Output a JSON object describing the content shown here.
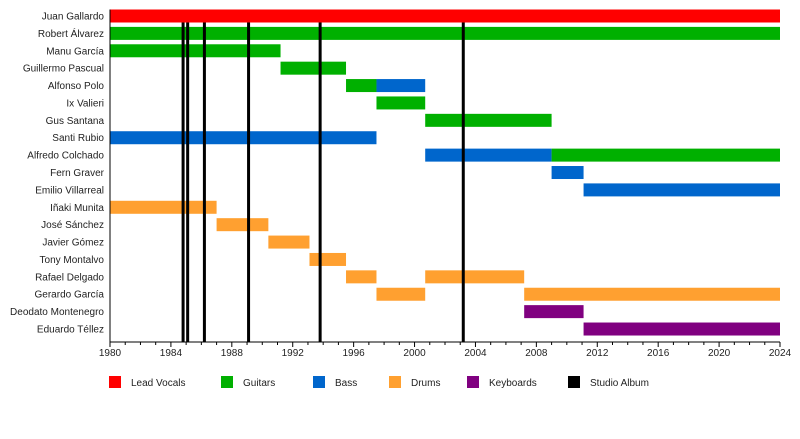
{
  "chart_data": {
    "type": "bar",
    "subtype": "timeline",
    "xlim": [
      1980,
      2024
    ],
    "xticks": [
      1980,
      1984,
      1988,
      1992,
      1996,
      2000,
      2004,
      2008,
      2012,
      2016,
      2020,
      2024
    ],
    "grid": false,
    "legend_placement": "bottom",
    "roles": [
      {
        "key": "vocals",
        "name": "Lead Vocals",
        "color": "#ff0000"
      },
      {
        "key": "guitars",
        "name": "Guitars",
        "color": "#00b000"
      },
      {
        "key": "bass",
        "name": "Bass",
        "color": "#0066cc"
      },
      {
        "key": "drums",
        "name": "Drums",
        "color": "#ffa030"
      },
      {
        "key": "keys",
        "name": "Keyboards",
        "color": "#800080"
      },
      {
        "key": "album",
        "name": "Studio Album",
        "color": "#000000"
      }
    ],
    "members": [
      {
        "name": "Juan Gallardo",
        "spans": [
          {
            "role": "vocals",
            "start": 1980,
            "end": 2024
          }
        ]
      },
      {
        "name": "Robert Álvarez",
        "spans": [
          {
            "role": "guitars",
            "start": 1980,
            "end": 2024
          }
        ]
      },
      {
        "name": "Manu García",
        "spans": [
          {
            "role": "guitars",
            "start": 1980,
            "end": 1991.2
          }
        ]
      },
      {
        "name": "Guillermo Pascual",
        "spans": [
          {
            "role": "guitars",
            "start": 1991.2,
            "end": 1995.5
          }
        ]
      },
      {
        "name": "Alfonso Polo",
        "spans": [
          {
            "role": "guitars",
            "start": 1995.5,
            "end": 1997.5
          },
          {
            "role": "bass",
            "start": 1997.5,
            "end": 2000.7
          }
        ]
      },
      {
        "name": "Ix Valieri",
        "spans": [
          {
            "role": "guitars",
            "start": 1997.5,
            "end": 2000.7
          }
        ]
      },
      {
        "name": "Gus Santana",
        "spans": [
          {
            "role": "guitars",
            "start": 2000.7,
            "end": 2009
          }
        ]
      },
      {
        "name": "Santi Rubio",
        "spans": [
          {
            "role": "bass",
            "start": 1980,
            "end": 1997.5
          }
        ]
      },
      {
        "name": "Alfredo Colchado",
        "spans": [
          {
            "role": "bass",
            "start": 2000.7,
            "end": 2009
          },
          {
            "role": "guitars",
            "start": 2009,
            "end": 2024
          }
        ]
      },
      {
        "name": "Fern Graver",
        "spans": [
          {
            "role": "bass",
            "start": 2009,
            "end": 2011.1
          }
        ]
      },
      {
        "name": "Emilio Villarreal",
        "spans": [
          {
            "role": "bass",
            "start": 2011.1,
            "end": 2024
          }
        ]
      },
      {
        "name": "Iñaki Munita",
        "spans": [
          {
            "role": "drums",
            "start": 1980,
            "end": 1987
          }
        ]
      },
      {
        "name": "José Sánchez",
        "spans": [
          {
            "role": "drums",
            "start": 1987,
            "end": 1990.4
          }
        ]
      },
      {
        "name": "Javier Gómez",
        "spans": [
          {
            "role": "drums",
            "start": 1990.4,
            "end": 1993.1
          }
        ]
      },
      {
        "name": "Tony Montalvo",
        "spans": [
          {
            "role": "drums",
            "start": 1993.1,
            "end": 1995.5
          }
        ]
      },
      {
        "name": "Rafael Delgado",
        "spans": [
          {
            "role": "drums",
            "start": 1995.5,
            "end": 1997.5
          },
          {
            "role": "drums",
            "start": 2000.7,
            "end": 2007.2
          }
        ]
      },
      {
        "name": "Gerardo García",
        "spans": [
          {
            "role": "drums",
            "start": 1997.5,
            "end": 2000.7
          },
          {
            "role": "drums",
            "start": 2007.2,
            "end": 2024
          }
        ]
      },
      {
        "name": "Deodato Montenegro",
        "spans": [
          {
            "role": "keys",
            "start": 2007.2,
            "end": 2011.1
          }
        ]
      },
      {
        "name": "Eduardo Téllez",
        "spans": [
          {
            "role": "keys",
            "start": 2011.1,
            "end": 2024
          }
        ]
      }
    ],
    "albums": [
      1984.8,
      1985.1,
      1986.2,
      1989.1,
      1993.8,
      2003.2
    ]
  }
}
